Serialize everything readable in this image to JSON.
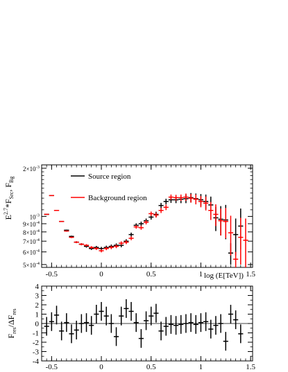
{
  "chart_data": [
    {
      "type": "scatter",
      "title": "",
      "xlabel": "log (E[TeV])",
      "ylabel_main": "E",
      "ylabel_sup": "2.7",
      "ylabel_rest": "*F",
      "ylabel_sub1": "Src",
      "ylabel_comma": ", F",
      "ylabel_sub2": "Bg",
      "xlim": [
        -0.6,
        1.52
      ],
      "ylim": [
        0.00048,
        0.0021
      ],
      "yscale": "log",
      "x_ticks": [
        {
          "value": -0.5,
          "label": "-0.5"
        },
        {
          "value": 0,
          "label": "0"
        },
        {
          "value": 0.5,
          "label": "0.5"
        },
        {
          "value": 1,
          "label": "1"
        },
        {
          "value": 1.5,
          "label": "1.5"
        }
      ],
      "y_ticks": [
        {
          "value": 0.002,
          "base": "2×10",
          "exp": "-3"
        },
        {
          "value": 0.001,
          "base": "10",
          "exp": "-3"
        },
        {
          "value": 0.0009,
          "base": "9×10",
          "exp": "-4"
        },
        {
          "value": 0.0008,
          "base": "8×10",
          "exp": "-4"
        },
        {
          "value": 0.0007,
          "base": "7×10",
          "exp": "-4"
        },
        {
          "value": 0.0006,
          "base": "6×10",
          "exp": "-4"
        },
        {
          "value": 0.0005,
          "base": "5×10",
          "exp": "-4"
        }
      ],
      "legend": {
        "placement": "top-left",
        "entries": [
          {
            "label": "Source region",
            "color": "#000000"
          },
          {
            "label": "Background region",
            "color": "#ff0000"
          }
        ]
      },
      "series": [
        {
          "name": "Source region",
          "color": "#000000",
          "x_err": 0.025,
          "points": [
            {
              "x": -0.55,
              "y": 0.00103,
              "e": 5e-06
            },
            {
              "x": -0.5,
              "y": 0.00135,
              "e": 6e-06
            },
            {
              "x": -0.45,
              "y": 0.00109,
              "e": 6e-06
            },
            {
              "x": -0.4,
              "y": 0.00093,
              "e": 6e-06
            },
            {
              "x": -0.35,
              "y": 0.00082,
              "e": 7e-06
            },
            {
              "x": -0.3,
              "y": 0.00075,
              "e": 8e-06
            },
            {
              "x": -0.25,
              "y": 0.00069,
              "e": 9e-06
            },
            {
              "x": -0.2,
              "y": 0.00067,
              "e": 1e-05
            },
            {
              "x": -0.15,
              "y": 0.00065,
              "e": 1.2e-05
            },
            {
              "x": -0.1,
              "y": 0.00063,
              "e": 1.3e-05
            },
            {
              "x": -0.05,
              "y": 0.00064,
              "e": 1.4e-05
            },
            {
              "x": 0.0,
              "y": 0.00063,
              "e": 1.5e-05
            },
            {
              "x": 0.05,
              "y": 0.00064,
              "e": 1.6e-05
            },
            {
              "x": 0.1,
              "y": 0.00065,
              "e": 1.7e-05
            },
            {
              "x": 0.15,
              "y": 0.00066,
              "e": 1.8e-05
            },
            {
              "x": 0.2,
              "y": 0.00066,
              "e": 1.9e-05
            },
            {
              "x": 0.25,
              "y": 0.0007,
              "e": 2e-05
            },
            {
              "x": 0.3,
              "y": 0.00077,
              "e": 2.2e-05
            },
            {
              "x": 0.35,
              "y": 0.00088,
              "e": 2.5e-05
            },
            {
              "x": 0.4,
              "y": 0.0009,
              "e": 2.8e-05
            },
            {
              "x": 0.45,
              "y": 0.00094,
              "e": 3e-05
            },
            {
              "x": 0.5,
              "y": 0.00099,
              "e": 3.5e-05
            },
            {
              "x": 0.55,
              "y": 0.00103,
              "e": 4e-05
            },
            {
              "x": 0.6,
              "y": 0.00117,
              "e": 4.5e-05
            },
            {
              "x": 0.65,
              "y": 0.00124,
              "e": 5e-05
            },
            {
              "x": 0.7,
              "y": 0.00127,
              "e": 5.5e-05
            },
            {
              "x": 0.75,
              "y": 0.00127,
              "e": 6e-05
            },
            {
              "x": 0.8,
              "y": 0.00128,
              "e": 7e-05
            },
            {
              "x": 0.85,
              "y": 0.00129,
              "e": 8e-05
            },
            {
              "x": 0.9,
              "y": 0.00131,
              "e": 9e-05
            },
            {
              "x": 0.95,
              "y": 0.00129,
              "e": 0.0001
            },
            {
              "x": 1.0,
              "y": 0.00127,
              "e": 0.00011
            },
            {
              "x": 1.05,
              "y": 0.00124,
              "e": 0.00013
            },
            {
              "x": 1.1,
              "y": 0.00118,
              "e": 0.00015
            },
            {
              "x": 1.15,
              "y": 0.00098,
              "e": 0.00017
            },
            {
              "x": 1.2,
              "y": 0.00096,
              "e": 0.0002
            },
            {
              "x": 1.25,
              "y": 0.00095,
              "e": 0.00023
            },
            {
              "x": 1.3,
              "y": 0.00059,
              "e": 9e-05
            },
            {
              "x": 1.35,
              "y": 0.00077,
              "e": 0.0002
            },
            {
              "x": 1.4,
              "y": 0.00087,
              "e": 0.00025
            }
          ]
        },
        {
          "name": "Background region",
          "color": "#ff0000",
          "x_err": 0.025,
          "points": [
            {
              "x": -0.55,
              "y": 0.00103,
              "e": 5e-06
            },
            {
              "x": -0.5,
              "y": 0.00135,
              "e": 6e-06
            },
            {
              "x": -0.45,
              "y": 0.00109,
              "e": 6e-06
            },
            {
              "x": -0.4,
              "y": 0.00093,
              "e": 6e-06
            },
            {
              "x": -0.35,
              "y": 0.00081,
              "e": 7e-06
            },
            {
              "x": -0.3,
              "y": 0.00074,
              "e": 8e-06
            },
            {
              "x": -0.25,
              "y": 0.00069,
              "e": 9e-06
            },
            {
              "x": -0.2,
              "y": 0.00067,
              "e": 1e-05
            },
            {
              "x": -0.15,
              "y": 0.00066,
              "e": 1.1e-05
            },
            {
              "x": -0.1,
              "y": 0.00064,
              "e": 1.2e-05
            },
            {
              "x": -0.05,
              "y": 0.00063,
              "e": 1.3e-05
            },
            {
              "x": 0.0,
              "y": 0.00061,
              "e": 1.4e-05
            },
            {
              "x": 0.05,
              "y": 0.00063,
              "e": 1.5e-05
            },
            {
              "x": 0.1,
              "y": 0.00064,
              "e": 1.6e-05
            },
            {
              "x": 0.15,
              "y": 0.00065,
              "e": 1.7e-05
            },
            {
              "x": 0.2,
              "y": 0.00068,
              "e": 1.8e-05
            },
            {
              "x": 0.25,
              "y": 0.00069,
              "e": 1.9e-05
            },
            {
              "x": 0.3,
              "y": 0.00073,
              "e": 2e-05
            },
            {
              "x": 0.35,
              "y": 0.00086,
              "e": 2.2e-05
            },
            {
              "x": 0.4,
              "y": 0.00085,
              "e": 2.5e-05
            },
            {
              "x": 0.45,
              "y": 0.00092,
              "e": 2.8e-05
            },
            {
              "x": 0.5,
              "y": 0.00104,
              "e": 3.2e-05
            },
            {
              "x": 0.55,
              "y": 0.00102,
              "e": 3.6e-05
            },
            {
              "x": 0.6,
              "y": 0.00109,
              "e": 4e-05
            },
            {
              "x": 0.65,
              "y": 0.00114,
              "e": 4.5e-05
            },
            {
              "x": 0.7,
              "y": 0.00132,
              "e": 5e-05
            },
            {
              "x": 0.75,
              "y": 0.00131,
              "e": 5.5e-05
            },
            {
              "x": 0.8,
              "y": 0.00131,
              "e": 6e-05
            },
            {
              "x": 0.85,
              "y": 0.00132,
              "e": 7e-05
            },
            {
              "x": 0.9,
              "y": 0.0013,
              "e": 8e-05
            },
            {
              "x": 0.95,
              "y": 0.00128,
              "e": 9e-05
            },
            {
              "x": 1.0,
              "y": 0.00124,
              "e": 0.0001
            },
            {
              "x": 1.05,
              "y": 0.00121,
              "e": 0.00012
            },
            {
              "x": 1.1,
              "y": 0.00109,
              "e": 0.00014
            },
            {
              "x": 1.15,
              "y": 0.00103,
              "e": 0.00016
            },
            {
              "x": 1.2,
              "y": 0.00094,
              "e": 0.00018
            },
            {
              "x": 1.25,
              "y": 0.00093,
              "e": 0.0002
            },
            {
              "x": 1.3,
              "y": 0.00079,
              "e": 0.00022
            },
            {
              "x": 1.35,
              "y": 0.00054,
              "e": 6e-05
            },
            {
              "x": 1.4,
              "y": 0.00074,
              "e": 0.00024
            },
            {
              "x": 1.45,
              "y": 0.00071,
              "e": 0.00026
            }
          ]
        }
      ]
    },
    {
      "type": "scatter",
      "title": "",
      "xlabel": "",
      "ylabel_main": "F",
      "ylabel_sub1": "res",
      "ylabel_mid": "/ΔF",
      "ylabel_sub2": "res",
      "xlim": [
        -0.6,
        1.52
      ],
      "ylim": [
        -4,
        4
      ],
      "x_ticks": [
        {
          "value": -0.5,
          "label": "-0.5"
        },
        {
          "value": 0,
          "label": "0"
        },
        {
          "value": 0.5,
          "label": "0.5"
        },
        {
          "value": 1,
          "label": "1"
        },
        {
          "value": 1.5,
          "label": "1.5"
        }
      ],
      "y_ticks": [
        {
          "value": 4,
          "label": "4"
        },
        {
          "value": 3,
          "label": "3"
        },
        {
          "value": 2,
          "label": "2"
        },
        {
          "value": 1,
          "label": "1"
        },
        {
          "value": 0,
          "label": "0"
        },
        {
          "value": -1,
          "label": "-1"
        },
        {
          "value": -2,
          "label": "-2"
        },
        {
          "value": -3,
          "label": "-3"
        },
        {
          "value": -4,
          "label": "-4"
        }
      ],
      "zero_line": true,
      "series": [
        {
          "color": "#000000",
          "x_err": 0.025,
          "points": [
            {
              "x": -0.55,
              "y": -0.3,
              "e": 1
            },
            {
              "x": -0.5,
              "y": 0.2,
              "e": 1
            },
            {
              "x": -0.45,
              "y": 0.9,
              "e": 1
            },
            {
              "x": -0.4,
              "y": -0.8,
              "e": 1
            },
            {
              "x": -0.35,
              "y": 0.1,
              "e": 1
            },
            {
              "x": -0.3,
              "y": -1.1,
              "e": 1
            },
            {
              "x": -0.25,
              "y": -0.7,
              "e": 1
            },
            {
              "x": -0.2,
              "y": 0.0,
              "e": 1
            },
            {
              "x": -0.15,
              "y": 0.1,
              "e": 1
            },
            {
              "x": -0.1,
              "y": -0.2,
              "e": 1
            },
            {
              "x": -0.05,
              "y": 1.0,
              "e": 1
            },
            {
              "x": 0.0,
              "y": 1.3,
              "e": 1
            },
            {
              "x": 0.05,
              "y": 0.8,
              "e": 1
            },
            {
              "x": 0.1,
              "y": 0.0,
              "e": 1
            },
            {
              "x": 0.15,
              "y": -1.4,
              "e": 1
            },
            {
              "x": 0.2,
              "y": 0.8,
              "e": 1
            },
            {
              "x": 0.25,
              "y": 1.6,
              "e": 1
            },
            {
              "x": 0.3,
              "y": 1.3,
              "e": 1
            },
            {
              "x": 0.35,
              "y": 0.1,
              "e": 1
            },
            {
              "x": 0.4,
              "y": -1.6,
              "e": 1
            },
            {
              "x": 0.45,
              "y": 0.3,
              "e": 1
            },
            {
              "x": 0.5,
              "y": 0.8,
              "e": 1
            },
            {
              "x": 0.55,
              "y": 1.1,
              "e": 1
            },
            {
              "x": 0.6,
              "y": -0.8,
              "e": 1
            },
            {
              "x": 0.65,
              "y": -0.3,
              "e": 1
            },
            {
              "x": 0.7,
              "y": -0.1,
              "e": 1
            },
            {
              "x": 0.75,
              "y": -0.2,
              "e": 1
            },
            {
              "x": 0.8,
              "y": -0.1,
              "e": 1
            },
            {
              "x": 0.85,
              "y": 0.0,
              "e": 1
            },
            {
              "x": 0.9,
              "y": 0.1,
              "e": 1
            },
            {
              "x": 0.95,
              "y": -0.1,
              "e": 1
            },
            {
              "x": 1.0,
              "y": 0.1,
              "e": 1
            },
            {
              "x": 1.05,
              "y": 0.2,
              "e": 1
            },
            {
              "x": 1.1,
              "y": -0.6,
              "e": 1
            },
            {
              "x": 1.15,
              "y": -0.2,
              "e": 1
            },
            {
              "x": 1.2,
              "y": 0.0,
              "e": 1
            },
            {
              "x": 1.25,
              "y": -1.9,
              "e": 1
            },
            {
              "x": 1.3,
              "y": 1.0,
              "e": 1
            },
            {
              "x": 1.35,
              "y": 0.4,
              "e": 1
            },
            {
              "x": 1.4,
              "y": -1.1,
              "e": 1
            }
          ]
        }
      ]
    }
  ]
}
